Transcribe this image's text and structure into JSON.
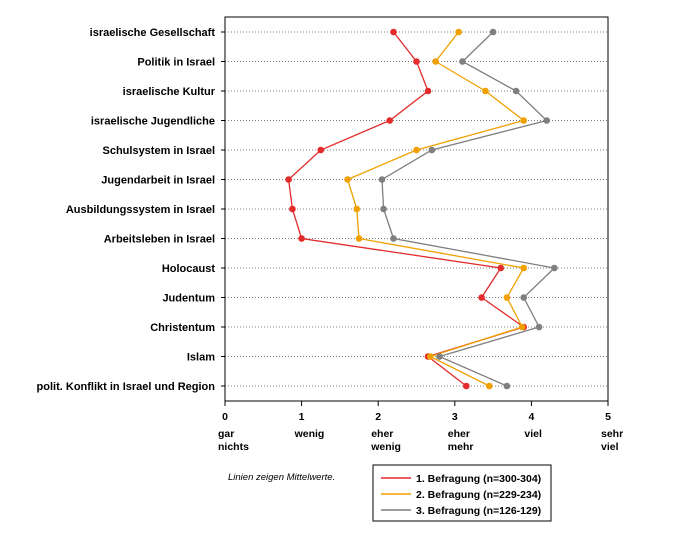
{
  "chart_data": {
    "type": "line",
    "orientation": "horizontal",
    "categories": [
      "israelische Gesellschaft",
      "Politik in Israel",
      "israelische Kultur",
      "israelische Jugendliche",
      "Schulsystem in Israel",
      "Jugendarbeit in Israel",
      "Ausbildungssystem in Israel",
      "Arbeitsleben in Israel",
      "Holocaust",
      "Judentum",
      "Christentum",
      "Islam",
      "polit. Konflikt in Israel und Region"
    ],
    "series": [
      {
        "name": "1. Befragung (n=300-304)",
        "color": "#e32b2b",
        "values": [
          2.2,
          2.5,
          2.65,
          2.15,
          1.25,
          0.83,
          0.88,
          1.0,
          3.6,
          3.35,
          3.9,
          2.65,
          3.15
        ]
      },
      {
        "name": "2. Befragung (n=229-234)",
        "color": "#f0a000",
        "values": [
          3.05,
          2.75,
          3.4,
          3.9,
          2.5,
          1.6,
          1.72,
          1.75,
          3.9,
          3.68,
          3.88,
          2.68,
          3.45
        ]
      },
      {
        "name": "3. Befragung (n=126-129)",
        "color": "#7f7f7f",
        "values": [
          3.5,
          3.1,
          3.8,
          4.2,
          2.7,
          2.05,
          2.07,
          2.2,
          4.3,
          3.9,
          4.1,
          2.8,
          3.68
        ]
      }
    ],
    "xlim": [
      0,
      5
    ],
    "xticks": [
      "0",
      "1",
      "2",
      "3",
      "4",
      "5"
    ],
    "xtick_descriptions": [
      {
        "value": 0,
        "lines": [
          "gar",
          "nichts"
        ]
      },
      {
        "value": 1,
        "lines": [
          "wenig"
        ]
      },
      {
        "value": 2,
        "lines": [
          "eher",
          "wenig"
        ]
      },
      {
        "value": 3,
        "lines": [
          "eher",
          "mehr"
        ]
      },
      {
        "value": 4,
        "lines": [
          "viel"
        ]
      },
      {
        "value": 5,
        "lines": [
          "sehr",
          "viel"
        ]
      }
    ],
    "gridlines": "horizontal dotted",
    "note": "Linien zeigen Mittelwerte.",
    "legend_position": "bottom-right"
  }
}
